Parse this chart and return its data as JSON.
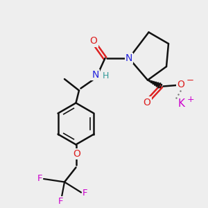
{
  "background_color": "#eeeeee",
  "bond_color": "#111111",
  "atom_colors": {
    "N": "#2222dd",
    "O": "#dd2222",
    "F": "#cc00cc",
    "K": "#cc00cc",
    "H": "#339999",
    "C": "#111111"
  },
  "figsize": [
    3.0,
    3.0
  ],
  "dpi": 100
}
